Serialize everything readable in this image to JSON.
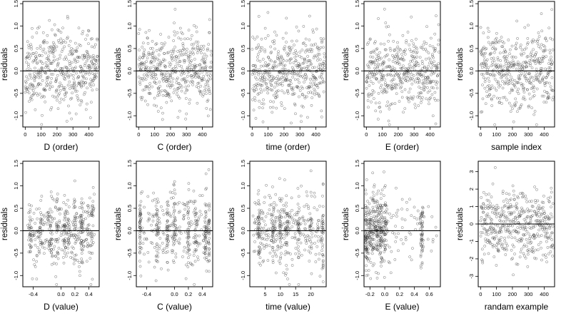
{
  "figure": {
    "type": "residual-diagnostics-grid",
    "rows": 2,
    "cols": 5,
    "marker": "open-circle",
    "marker_color": "#333333",
    "reference_line": 0
  },
  "chart_data": [
    {
      "id": "d-order",
      "type": "scatter",
      "xlabel": "D (order)",
      "ylabel": "residuals",
      "x_ticks": [
        0,
        100,
        200,
        300,
        400
      ],
      "y_ticks": [
        -1.0,
        -0.5,
        0.0,
        0.5,
        1.0,
        1.5
      ],
      "y_tick_labels": [
        "-1.0",
        "-0.5",
        "0.0",
        "0.5",
        "1.0",
        "1.5"
      ],
      "xlim": [
        -15,
        465
      ],
      "ylim": [
        -1.25,
        1.55
      ],
      "gen": {
        "n": 470,
        "mode": "index",
        "seed": 11,
        "sd": 0.42,
        "ymin": -1.2,
        "ymax": 1.45
      }
    },
    {
      "id": "c-order",
      "type": "scatter",
      "xlabel": "C (order)",
      "ylabel": "residuals",
      "x_ticks": [
        0,
        100,
        200,
        300,
        400
      ],
      "y_ticks": [
        -1.0,
        -0.5,
        0.0,
        0.5,
        1.0,
        1.5
      ],
      "y_tick_labels": [
        "-1.0",
        "-0.5",
        "0.0",
        "0.5",
        "1.0",
        "1.5"
      ],
      "xlim": [
        -15,
        465
      ],
      "ylim": [
        -1.25,
        1.55
      ],
      "gen": {
        "n": 470,
        "mode": "index",
        "seed": 23,
        "sd": 0.42,
        "ymin": -1.2,
        "ymax": 1.45
      }
    },
    {
      "id": "time-order",
      "type": "scatter",
      "xlabel": "time (order)",
      "ylabel": "residuals",
      "x_ticks": [
        0,
        100,
        200,
        300,
        400
      ],
      "y_ticks": [
        -1.0,
        -0.5,
        0.0,
        0.5,
        1.0,
        1.5
      ],
      "y_tick_labels": [
        "-1.0",
        "-0.5",
        "0.0",
        "0.5",
        "1.0",
        "1.5"
      ],
      "xlim": [
        -15,
        465
      ],
      "ylim": [
        -1.25,
        1.55
      ],
      "gen": {
        "n": 470,
        "mode": "index",
        "seed": 37,
        "sd": 0.42,
        "ymin": -1.2,
        "ymax": 1.45
      }
    },
    {
      "id": "e-order",
      "type": "scatter",
      "xlabel": "E (order)",
      "ylabel": "residuals",
      "x_ticks": [
        0,
        100,
        200,
        300,
        400
      ],
      "y_ticks": [
        -1.0,
        -0.5,
        0.0,
        0.5,
        1.0,
        1.5
      ],
      "y_tick_labels": [
        "-1.0",
        "-0.5",
        "0.0",
        "0.5",
        "1.0",
        "1.5"
      ],
      "xlim": [
        -15,
        465
      ],
      "ylim": [
        -1.25,
        1.55
      ],
      "gen": {
        "n": 470,
        "mode": "index",
        "seed": 41,
        "sd": 0.42,
        "ymin": -1.2,
        "ymax": 1.45
      }
    },
    {
      "id": "sample-index",
      "type": "scatter",
      "xlabel": "sample index",
      "ylabel": "residuals",
      "x_ticks": [
        0,
        100,
        200,
        300,
        400
      ],
      "y_ticks": [
        -1.0,
        -0.5,
        0.0,
        0.5,
        1.0,
        1.5
      ],
      "y_tick_labels": [
        "-1.0",
        "-0.5",
        "0.0",
        "0.5",
        "1.0",
        "1.5"
      ],
      "xlim": [
        -15,
        465
      ],
      "ylim": [
        -1.25,
        1.55
      ],
      "gen": {
        "n": 470,
        "mode": "index",
        "seed": 53,
        "sd": 0.42,
        "ymin": -1.2,
        "ymax": 1.45
      }
    },
    {
      "id": "d-value",
      "type": "scatter",
      "xlabel": "D (value)",
      "ylabel": "residuals",
      "x_ticks": [
        -0.4,
        0.0,
        0.2,
        0.4
      ],
      "x_tick_labels": [
        "-0.4",
        "0.0",
        "0.2",
        "0.4"
      ],
      "y_ticks": [
        -1.0,
        -0.5,
        0.0,
        0.5,
        1.0,
        1.5
      ],
      "y_tick_labels": [
        "-1.0",
        "-0.5",
        "0.0",
        "0.5",
        "1.0",
        "1.5"
      ],
      "xlim": [
        -0.55,
        0.55
      ],
      "ylim": [
        -1.25,
        1.55
      ],
      "gen": {
        "n": 470,
        "mode": "clusters",
        "seed": 61,
        "sd": 0.42,
        "ymin": -1.2,
        "ymax": 1.45,
        "xmin": -0.48,
        "xmax": 0.48,
        "centers": [
          -0.45,
          -0.3,
          -0.15,
          -0.05,
          0.05,
          0.1,
          0.2,
          0.3,
          0.45
        ],
        "jitter": 0.012,
        "frac": 0.55
      }
    },
    {
      "id": "c-value",
      "type": "scatter",
      "xlabel": "C (value)",
      "ylabel": "residuals",
      "x_ticks": [
        -0.4,
        0.0,
        0.2,
        0.4
      ],
      "x_tick_labels": [
        "-0.4",
        "0.0",
        "0.2",
        "0.4"
      ],
      "y_ticks": [
        -1.0,
        -0.5,
        0.0,
        0.5,
        1.0,
        1.5
      ],
      "y_tick_labels": [
        "-1.0",
        "-0.5",
        "0.0",
        "0.5",
        "1.0",
        "1.5"
      ],
      "xlim": [
        -0.55,
        0.55
      ],
      "ylim": [
        -1.25,
        1.55
      ],
      "gen": {
        "n": 470,
        "mode": "clusters",
        "seed": 73,
        "sd": 0.42,
        "ymin": -1.2,
        "ymax": 1.45,
        "xmin": -0.5,
        "xmax": 0.5,
        "centers": [
          -0.5,
          -0.25,
          -0.1,
          0.0,
          0.2,
          0.3,
          0.45,
          0.5
        ],
        "jitter": 0.01,
        "frac": 0.6
      }
    },
    {
      "id": "time-value",
      "type": "scatter",
      "xlabel": "time (value)",
      "ylabel": "residuals",
      "x_ticks": [
        5,
        10,
        15,
        20
      ],
      "y_ticks": [
        -1.0,
        -0.5,
        0.0,
        0.5,
        1.0,
        1.5
      ],
      "y_tick_labels": [
        "-1.0",
        "-0.5",
        "0.0",
        "0.5",
        "1.0",
        "1.5"
      ],
      "xlim": [
        0,
        25
      ],
      "ylim": [
        -1.25,
        1.55
      ],
      "gen": {
        "n": 470,
        "mode": "clusters",
        "seed": 89,
        "sd": 0.42,
        "ymin": -1.2,
        "ymax": 1.45,
        "xmin": 1,
        "xmax": 24,
        "centers": [
          3,
          7.5,
          10,
          12,
          16,
          20,
          24
        ],
        "jitter": 0.25,
        "frac": 0.45
      }
    },
    {
      "id": "e-value",
      "type": "scatter",
      "xlabel": "E (value)",
      "ylabel": "residuals",
      "x_ticks": [
        -0.2,
        0.0,
        0.2,
        0.4,
        0.6
      ],
      "x_tick_labels": [
        "-0.2",
        "0.0",
        "0.2",
        "0.4",
        "0.6"
      ],
      "y_ticks": [
        -1.0,
        -0.5,
        0.0,
        0.5,
        1.0,
        1.5
      ],
      "y_tick_labels": [
        "-1.0",
        "-0.5",
        "0.0",
        "0.5",
        "1.0",
        "1.5"
      ],
      "xlim": [
        -0.28,
        0.75
      ],
      "ylim": [
        -1.25,
        1.55
      ],
      "gen": {
        "n": 470,
        "mode": "skewed",
        "seed": 97,
        "sd": 0.42,
        "ymin": -1.2,
        "ymax": 1.45,
        "xmin": -0.26,
        "xmax": 0.7,
        "centers": [
          -0.25,
          -0.2,
          -0.15,
          -0.1,
          -0.05,
          0.0,
          0.5
        ],
        "jitter": 0.012,
        "frac": 0.75
      }
    },
    {
      "id": "random-example",
      "type": "scatter",
      "xlabel": "randam example",
      "ylabel": "residuals",
      "x_ticks": [
        0,
        100,
        200,
        300,
        400
      ],
      "y_ticks": [
        -3,
        -2,
        -1,
        0,
        1,
        2,
        3
      ],
      "y_tick_labels": [
        "-3",
        "-2",
        "-1",
        "0",
        "1",
        "2",
        "3"
      ],
      "xlim": [
        -15,
        465
      ],
      "ylim": [
        -3.6,
        3.6
      ],
      "gen": {
        "n": 470,
        "mode": "index",
        "seed": 101,
        "sd": 1.0,
        "ymin": -3.5,
        "ymax": 3.3
      }
    }
  ]
}
